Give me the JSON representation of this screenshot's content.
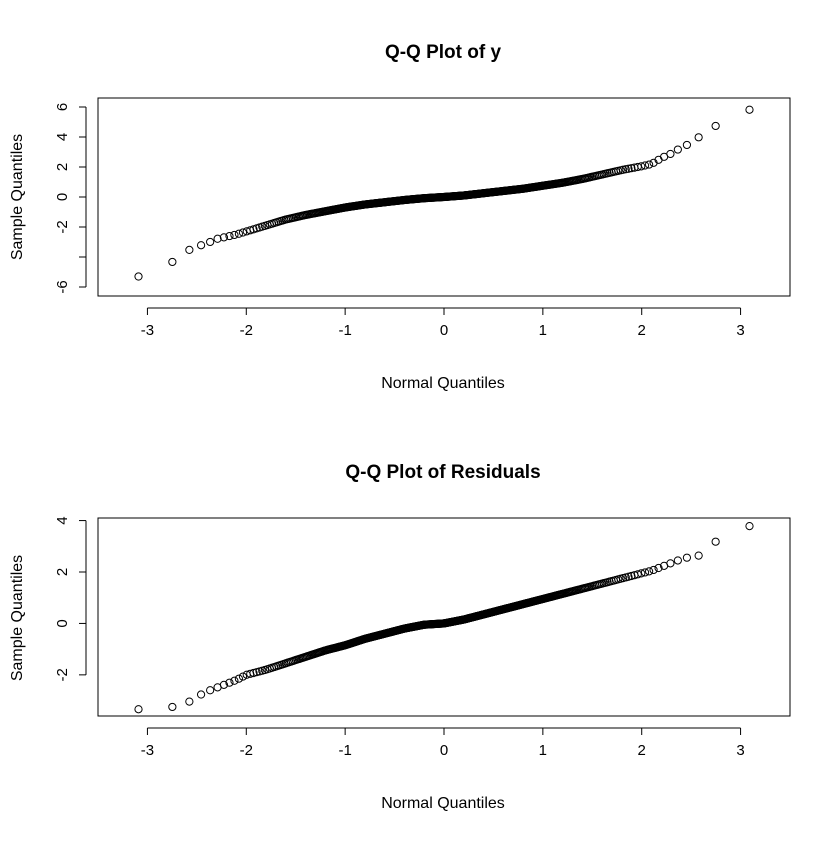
{
  "chart_data": [
    {
      "type": "scatter",
      "title": "Q-Q Plot of y",
      "xlabel": "Normal Quantiles",
      "ylabel": "Sample Quantiles",
      "xlim": [
        -3.5,
        3.5
      ],
      "ylim": [
        -6.6,
        6.6
      ],
      "xticks": [
        -3,
        -2,
        -1,
        0,
        1,
        2,
        3
      ],
      "yticks": [
        -6,
        -4,
        -2,
        0,
        2,
        4,
        6
      ],
      "ytick_labels": [
        "-6",
        "",
        "-2",
        "0",
        "2",
        "4",
        "6"
      ],
      "grid": false,
      "legend": "none",
      "n_points": 500,
      "series": [
        {
          "values_at_quantiles": {
            "x": [
              -3.3,
              -2.97,
              -2.8,
              -2.7,
              -2.6,
              -2.5,
              -2.4,
              -2.3,
              -2.2,
              -2.1,
              -2.0,
              -1.8,
              -1.6,
              -1.4,
              -1.2,
              -1.0,
              -0.8,
              -0.6,
              -0.4,
              -0.2,
              0.0,
              0.2,
              0.4,
              0.6,
              0.8,
              1.0,
              1.2,
              1.4,
              1.6,
              1.8,
              2.0,
              2.1,
              2.2,
              2.3,
              2.4,
              2.5,
              2.6,
              2.7,
              2.8,
              2.97,
              3.3
            ],
            "y": [
              -6.0,
              -4.9,
              -4.8,
              -3.9,
              -3.6,
              -3.3,
              -3.1,
              -2.8,
              -2.65,
              -2.5,
              -2.3,
              -1.9,
              -1.5,
              -1.2,
              -0.95,
              -0.7,
              -0.5,
              -0.35,
              -0.2,
              -0.08,
              0.0,
              0.1,
              0.25,
              0.4,
              0.55,
              0.75,
              0.95,
              1.2,
              1.5,
              1.8,
              2.05,
              2.2,
              2.6,
              2.9,
              3.3,
              3.6,
              4.1,
              4.5,
              5.0,
              5.6,
              6.2
            ]
          }
        }
      ]
    },
    {
      "type": "scatter",
      "title": "Q-Q Plot of Residuals",
      "xlabel": "Normal Quantiles",
      "ylabel": "Sample Quantiles",
      "xlim": [
        -3.5,
        3.5
      ],
      "ylim": [
        -3.6,
        4.1
      ],
      "xticks": [
        -3,
        -2,
        -1,
        0,
        1,
        2,
        3
      ],
      "yticks": [
        -2,
        0,
        2,
        4
      ],
      "ytick_labels": [
        "-2",
        "0",
        "2",
        "4"
      ],
      "grid": false,
      "legend": "none",
      "n_points": 500,
      "series": [
        {
          "values_at_quantiles": {
            "x": [
              -3.3,
              -2.97,
              -2.8,
              -2.7,
              -2.6,
              -2.5,
              -2.4,
              -2.3,
              -2.2,
              -2.1,
              -2.0,
              -1.8,
              -1.6,
              -1.4,
              -1.2,
              -1.0,
              -0.8,
              -0.6,
              -0.4,
              -0.2,
              0.0,
              0.2,
              0.4,
              0.6,
              0.8,
              1.0,
              1.2,
              1.4,
              1.6,
              1.8,
              2.0,
              2.1,
              2.2,
              2.3,
              2.4,
              2.5,
              2.6,
              2.7,
              2.8,
              2.97,
              3.3
            ],
            "y": [
              -3.4,
              -3.3,
              -3.3,
              -3.2,
              -3.1,
              -2.85,
              -2.65,
              -2.5,
              -2.35,
              -2.2,
              -2.0,
              -1.8,
              -1.55,
              -1.3,
              -1.05,
              -0.85,
              -0.6,
              -0.4,
              -0.2,
              -0.05,
              0.0,
              0.15,
              0.35,
              0.55,
              0.75,
              0.95,
              1.15,
              1.35,
              1.55,
              1.75,
              1.95,
              2.05,
              2.2,
              2.35,
              2.5,
              2.6,
              2.65,
              2.7,
              3.7,
              3.72,
              3.9
            ]
          }
        }
      ]
    }
  ]
}
